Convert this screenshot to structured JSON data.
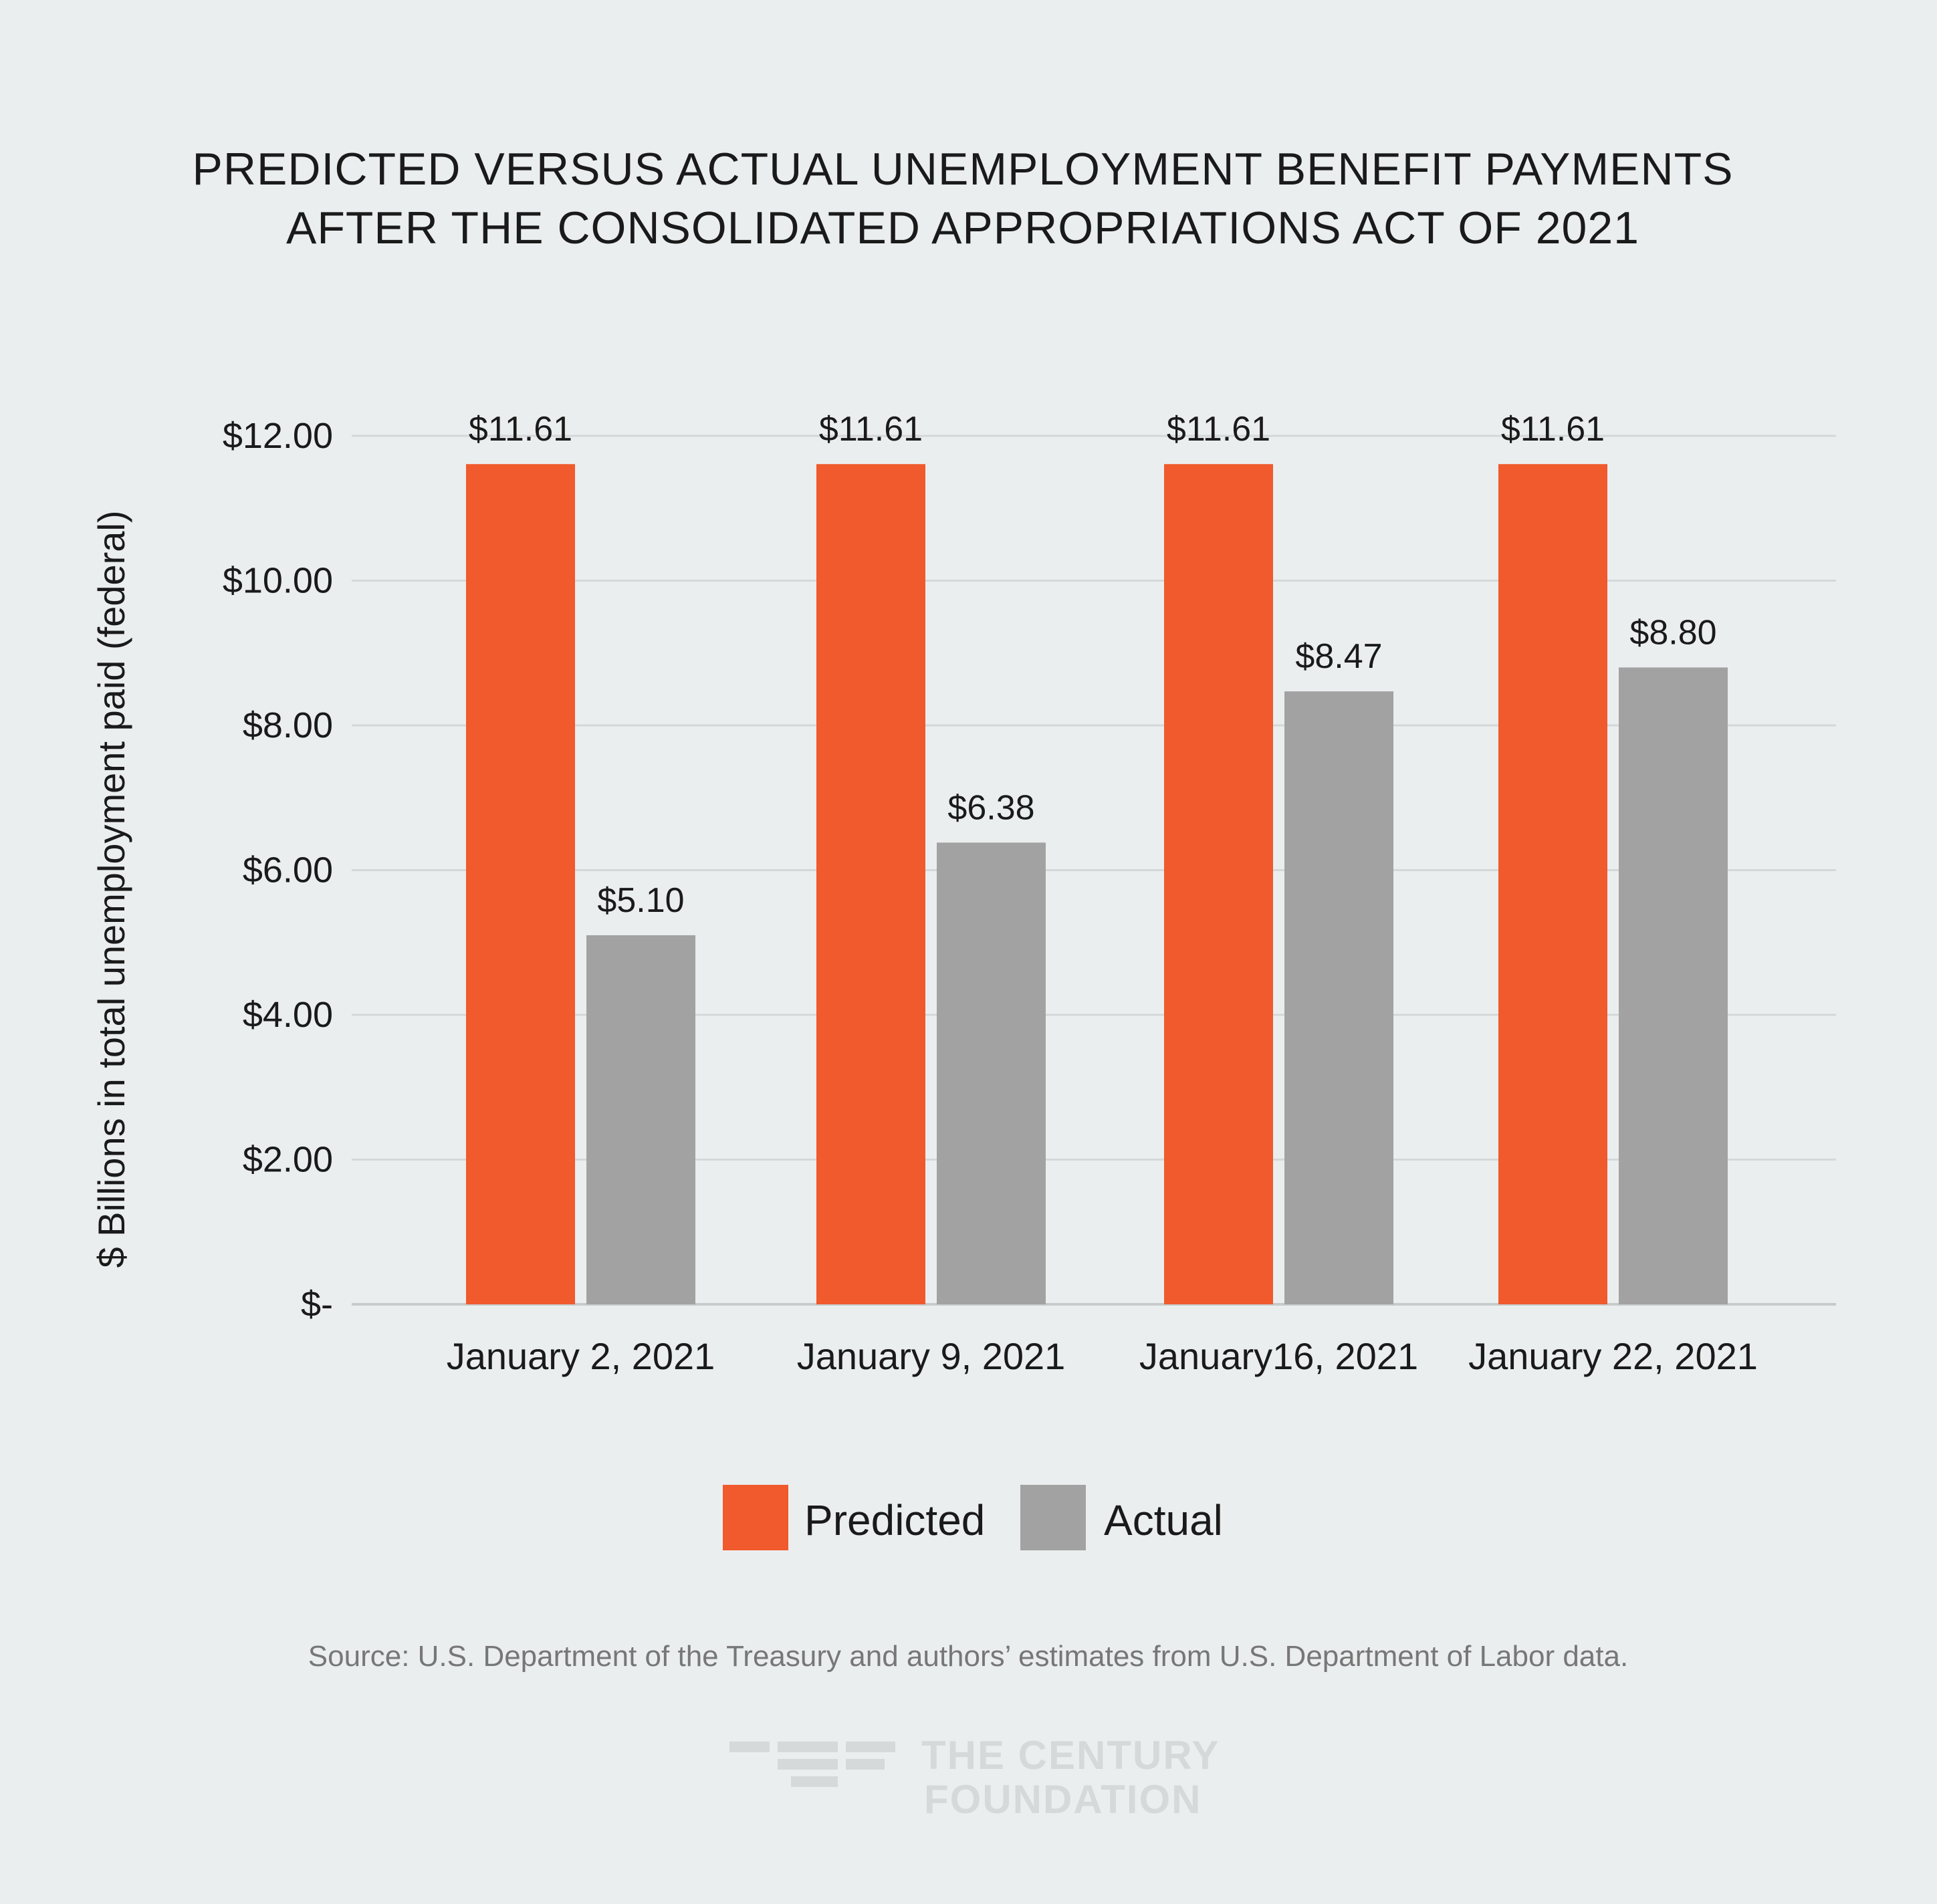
{
  "chart_data": {
    "type": "bar",
    "title_lines": [
      "PREDICTED VERSUS ACTUAL UNEMPLOYMENT BENEFIT PAYMENTS",
      "AFTER THE CONSOLIDATED APPROPRIATIONS ACT OF 2021"
    ],
    "ylabel": "$ Billions in total unemployment paid (federal)",
    "xlabel": "",
    "ylim": [
      0,
      12
    ],
    "yticks": [
      0,
      2,
      4,
      6,
      8,
      10,
      12
    ],
    "ytick_labels": [
      "$-",
      "$2.00",
      "$4.00",
      "$6.00",
      "$8.00",
      "$10.00",
      "$12.00"
    ],
    "grid": true,
    "categories": [
      "January 2, 2021",
      "January 9, 2021",
      "January16, 2021",
      "January 22, 2021"
    ],
    "series": [
      {
        "name": "Predicted",
        "color": "#f05a2c",
        "values": [
          11.61,
          11.61,
          11.61,
          11.61
        ],
        "labels": [
          "$11.61",
          "$11.61",
          "$11.61",
          "$11.61"
        ]
      },
      {
        "name": "Actual",
        "color": "#a2a2a2",
        "values": [
          5.1,
          6.38,
          8.47,
          8.8
        ],
        "labels": [
          "$5.10",
          "$6.38",
          "$8.47",
          "$8.80"
        ]
      }
    ],
    "legend_position": "bottom-center",
    "source": "Source: U.S. Department of the Treasury and authors’ estimates from U.S. Department of Labor data."
  },
  "logo": {
    "line1": "THE CENTURY",
    "line2": "FOUNDATION",
    "color": "#d6d9d9"
  }
}
